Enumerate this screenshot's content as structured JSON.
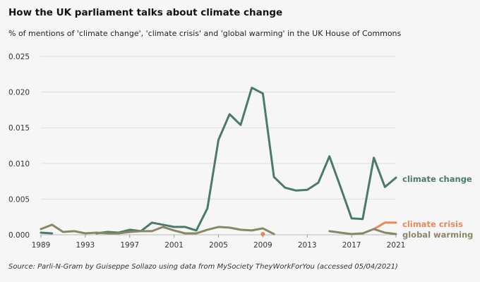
{
  "chart_data": {
    "type": "line",
    "title": "How the UK parliament talks about climate change",
    "subtitle": "% of mentions of 'climate change', 'climate crisis' and 'global warming' in the UK House of Commons",
    "source": "Source: Parli-N-Gram by Guiseppe Sollazo using data from MySociety TheyWorkForYou (accessed 05/04/2021)",
    "xlabel": "",
    "ylabel": "",
    "xlim": [
      1989,
      2021
    ],
    "ylim": [
      0,
      0.025
    ],
    "x_ticks": [
      "1989",
      "1993",
      "1997",
      "2001",
      "2005",
      "2009",
      "2013",
      "2017",
      "2021"
    ],
    "y_ticks": [
      "0.000",
      "0.005",
      "0.010",
      "0.015",
      "0.020",
      "0.025"
    ],
    "grid": "horizontal",
    "series": [
      {
        "name": "climate change",
        "color": "#4a7a6c",
        "segments": [
          [
            [
              1989,
              0.0003
            ],
            [
              1990,
              0.0002
            ]
          ],
          [
            [
              1994,
              0.0002
            ],
            [
              1995,
              0.0004
            ],
            [
              1996,
              0.0003
            ],
            [
              1997,
              0.0007
            ],
            [
              1998,
              0.0005
            ],
            [
              1999,
              0.0017
            ],
            [
              2000,
              0.0014
            ],
            [
              2001,
              0.0011
            ],
            [
              2002,
              0.0011
            ],
            [
              2003,
              0.0006
            ],
            [
              2004,
              0.0037
            ],
            [
              2005,
              0.0133
            ],
            [
              2006,
              0.0169
            ],
            [
              2007,
              0.0154
            ],
            [
              2008,
              0.0206
            ],
            [
              2009,
              0.0198
            ],
            [
              2010,
              0.0081
            ],
            [
              2011,
              0.0066
            ],
            [
              2012,
              0.0062
            ],
            [
              2013,
              0.0063
            ],
            [
              2014,
              0.0073
            ],
            [
              2015,
              0.011
            ],
            [
              2016,
              0.0067
            ],
            [
              2017,
              0.0023
            ],
            [
              2018,
              0.0022
            ],
            [
              2019,
              0.0108
            ],
            [
              2020,
              0.0067
            ],
            [
              2021,
              0.008
            ]
          ]
        ]
      },
      {
        "name": "climate crisis",
        "color": "#e8885a",
        "segments": [
          [
            [
              2019,
              0.0008
            ],
            [
              2020,
              0.0017
            ],
            [
              2021,
              0.0017
            ]
          ]
        ],
        "points": [
          [
            2009,
            0.0001
          ]
        ]
      },
      {
        "name": "global warming",
        "color": "#8a8766",
        "segments": [
          [
            [
              1989,
              0.0008
            ],
            [
              1990,
              0.0014
            ],
            [
              1991,
              0.0004
            ],
            [
              1992,
              0.0005
            ],
            [
              1993,
              0.0002
            ],
            [
              1994,
              0.0003
            ],
            [
              1995,
              0.0002
            ],
            [
              1996,
              0.0002
            ],
            [
              1997,
              0.0004
            ],
            [
              1998,
              0.0005
            ],
            [
              1999,
              0.0005
            ],
            [
              2000,
              0.0011
            ],
            [
              2001,
              0.0006
            ],
            [
              2002,
              0.0002
            ],
            [
              2003,
              0.0002
            ],
            [
              2004,
              0.0007
            ],
            [
              2005,
              0.0011
            ],
            [
              2006,
              0.001
            ],
            [
              2007,
              0.0007
            ],
            [
              2008,
              0.0006
            ],
            [
              2009,
              0.0009
            ],
            [
              2010,
              0.0001
            ]
          ],
          [
            [
              2015,
              0.0005
            ],
            [
              2016,
              0.0003
            ],
            [
              2017,
              0.0001
            ],
            [
              2018,
              0.0002
            ],
            [
              2019,
              0.0008
            ],
            [
              2020,
              0.0003
            ],
            [
              2021,
              0.0001
            ]
          ]
        ]
      }
    ]
  }
}
